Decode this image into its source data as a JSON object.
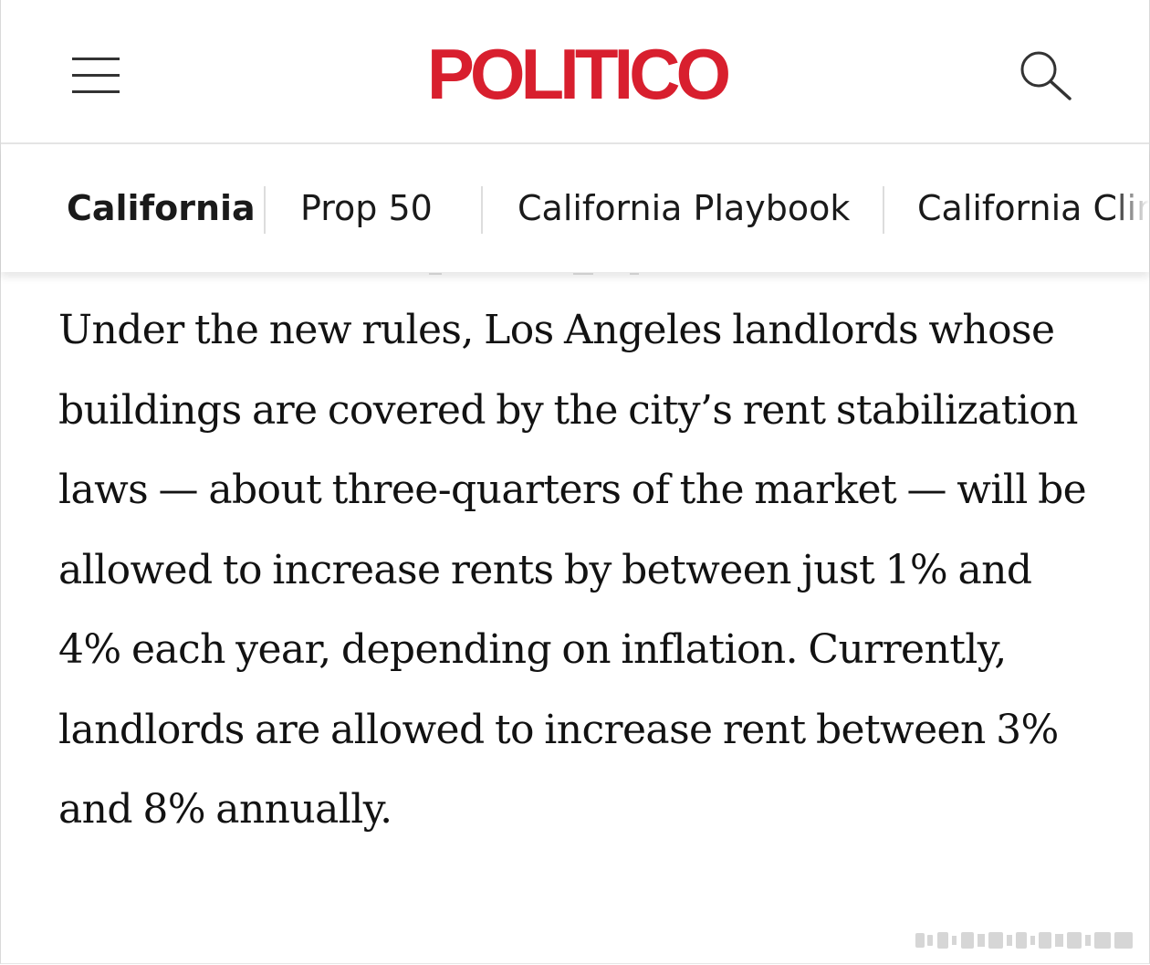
{
  "header": {
    "logo_text": "POLITICO",
    "menu_icon": "hamburger-menu-icon",
    "search_icon": "search-icon",
    "logo_color": "#d81f2e"
  },
  "subnav": {
    "items": [
      {
        "label": "California",
        "active": true
      },
      {
        "label": "Prop 50",
        "active": false
      },
      {
        "label": "California Playbook",
        "active": false
      },
      {
        "label": "California Climate",
        "active": false
      }
    ]
  },
  "article": {
    "paragraph": "Under the new rules, Los Angeles landlords whose buildings are covered by the city’s rent stabilization laws — about three-quarters of the market — will be allowed to increase rents by between just 1% and 4% each year, depending on inflation. Currently, landlords are allowed to increase rent between 3% and 8% annually."
  }
}
